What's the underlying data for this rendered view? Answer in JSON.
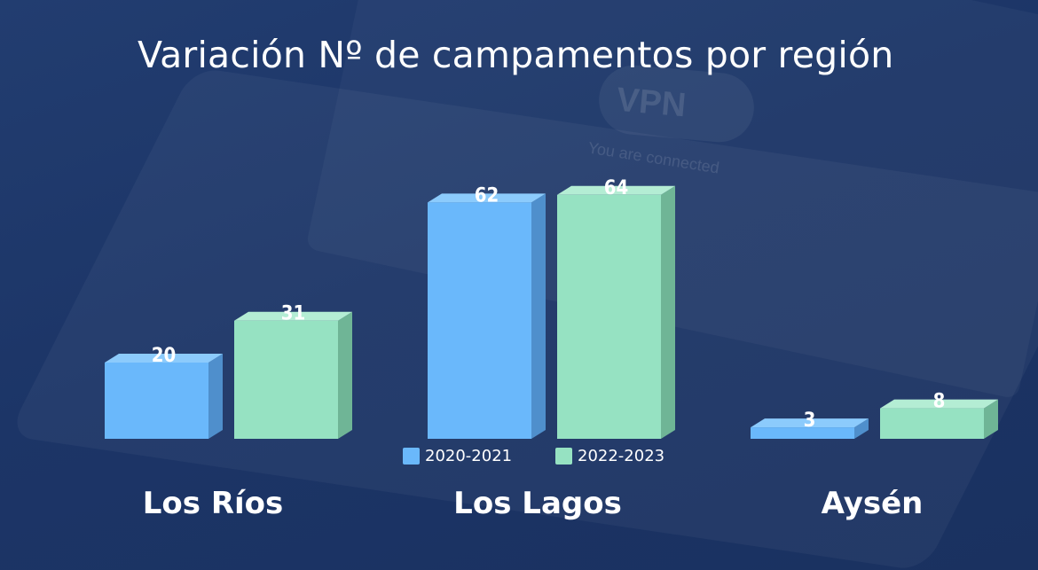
{
  "chart_data": {
    "type": "bar",
    "title": "Variación Nº de campamentos por región",
    "categories": [
      "Los Ríos",
      "Los Lagos",
      "Aysén"
    ],
    "series": [
      {
        "name": "2020-2021",
        "values": [
          20,
          62,
          3
        ],
        "color": "#6ab8fb",
        "side_color": "#4f8fcc",
        "top_color": "#8ccbfc"
      },
      {
        "name": "2022-2023",
        "values": [
          31,
          64,
          8
        ],
        "color": "#96e2c2",
        "side_color": "#6fb596",
        "top_color": "#b4edd4"
      }
    ],
    "ylim": [
      0,
      64
    ],
    "grid": false,
    "legend": "bottom-center",
    "data_labels": true,
    "style": "3d-bars"
  }
}
